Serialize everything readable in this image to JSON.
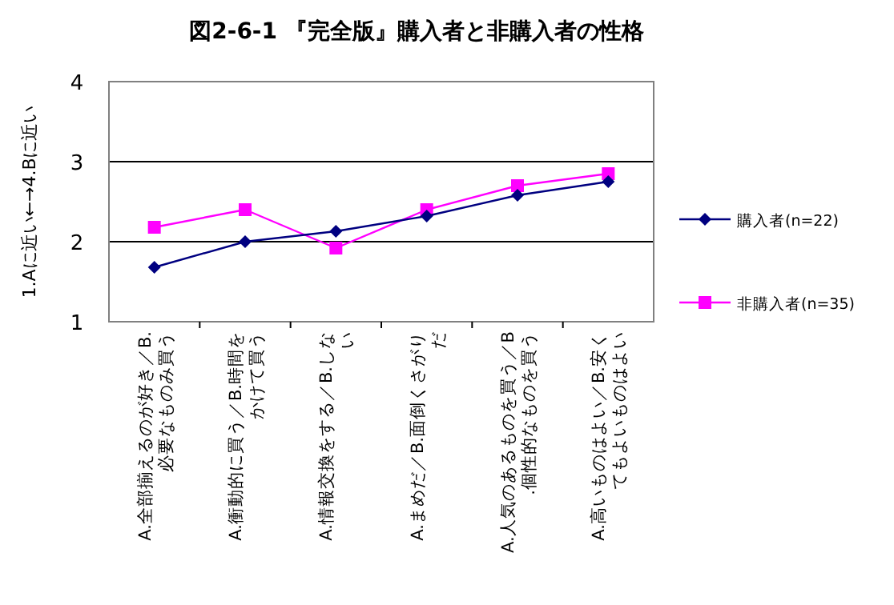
{
  "chart_data": {
    "type": "line",
    "title": "図2-6-1 『完全版』購入者と非購入者の性格",
    "ylabel": "1.Aに近い←→4.Bに近い",
    "categories": [
      "A.全部揃えるのが好き／B.必要なものみ買う",
      "A.衝動的に買う／B.時間をかけて買う",
      "A.情報交換をする／B.しない",
      "A.まめだ／B.面倒くさがりだ",
      "A.人気のあるものを買う／B.個性的なものを買う",
      "A.高いものはよい／B.安くてもよいものはよい"
    ],
    "series": [
      {
        "name": "購入者(n=22)",
        "color": "#000080",
        "marker": "diamond",
        "values": [
          1.68,
          2.0,
          2.13,
          2.32,
          2.58,
          2.75
        ]
      },
      {
        "name": "非購入者(n=35)",
        "color": "#ff00ff",
        "marker": "square",
        "values": [
          2.18,
          2.4,
          1.92,
          2.4,
          2.7,
          2.85
        ]
      }
    ],
    "ylim": [
      1,
      4
    ],
    "yticks": [
      1,
      2,
      3,
      4
    ],
    "grid": "y",
    "legend": "right"
  }
}
